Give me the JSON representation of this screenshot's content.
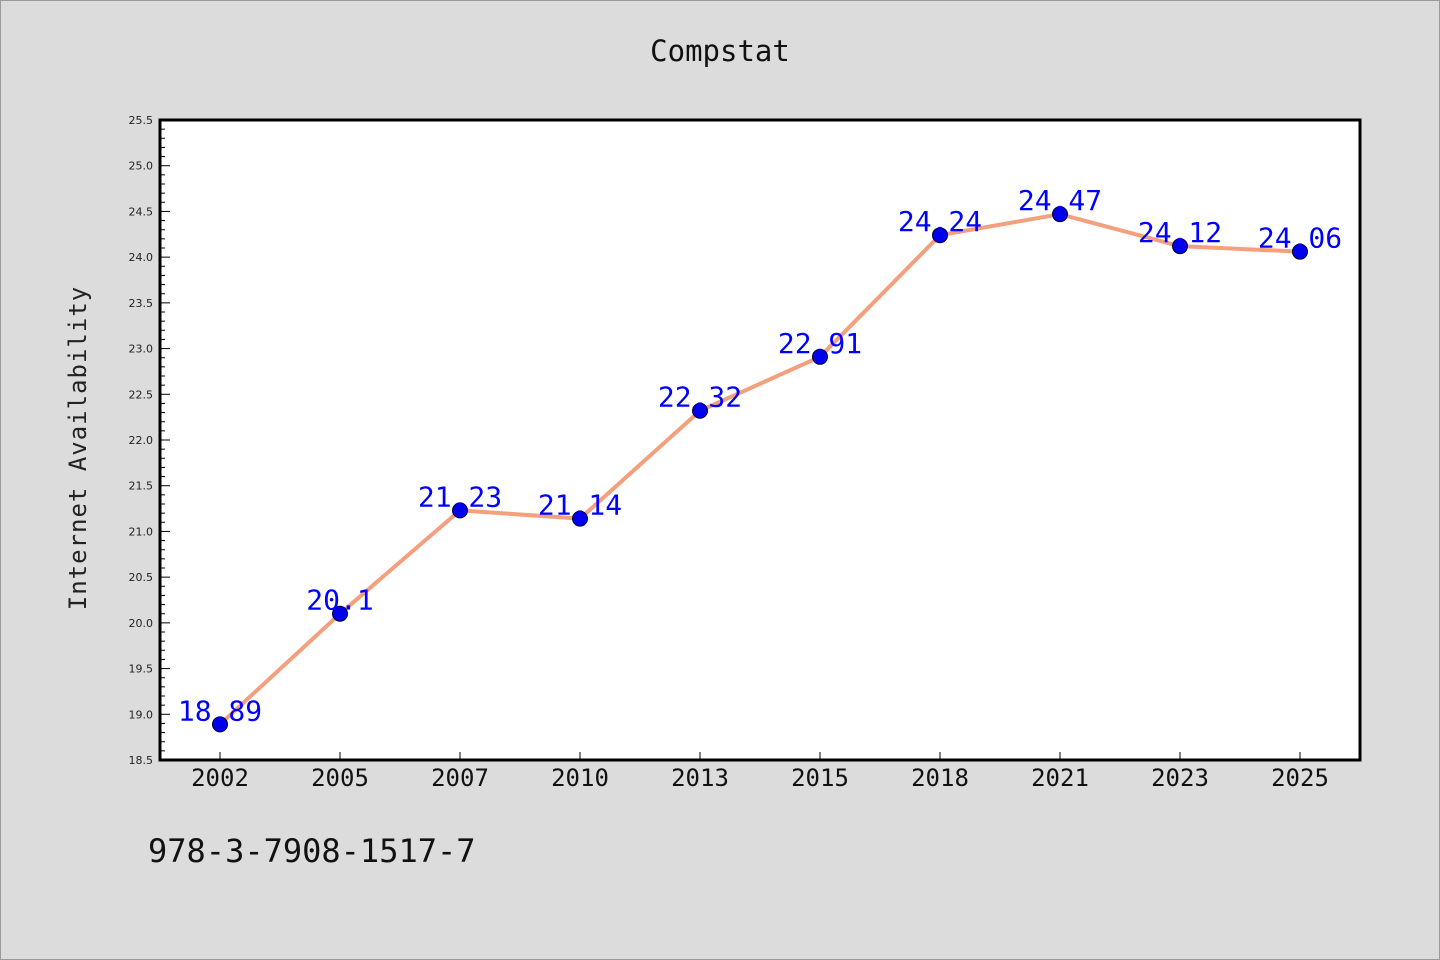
{
  "chart_data": {
    "type": "line",
    "title": "Compstat",
    "xlabel": "",
    "ylabel": "Internet Availability",
    "categories": [
      "2002",
      "2005",
      "2007",
      "2010",
      "2013",
      "2015",
      "2018",
      "2021",
      "2023",
      "2025"
    ],
    "values": [
      18.89,
      20.1,
      21.23,
      21.14,
      22.32,
      22.91,
      24.24,
      24.47,
      24.12,
      24.06
    ],
    "data_labels": [
      "18.89",
      "20.1",
      "21.23",
      "21.14",
      "22.32",
      "22.91",
      "24.24",
      "24.47",
      "24.12",
      "24.06"
    ],
    "ylim": [
      18.5,
      25.5
    ],
    "y_ticks": [
      "18.5",
      "19.0",
      "19.5",
      "20.0",
      "20.5",
      "21.0",
      "21.5",
      "22.0",
      "22.5",
      "23.0",
      "23.5",
      "24.0",
      "24.5",
      "25.0",
      "25.5"
    ],
    "y_tick_step": 0.5,
    "y_minor_step": 0.1,
    "grid": false,
    "legend": "none",
    "colors": {
      "line": "#f4a07e",
      "marker": "#0000ee",
      "marker_edge": "#000033",
      "data_label": "#0000ff",
      "background": "#dcdcdc",
      "plot_area": "#ffffff"
    }
  },
  "footer": {
    "code": "978-3-7908-1517-7"
  }
}
